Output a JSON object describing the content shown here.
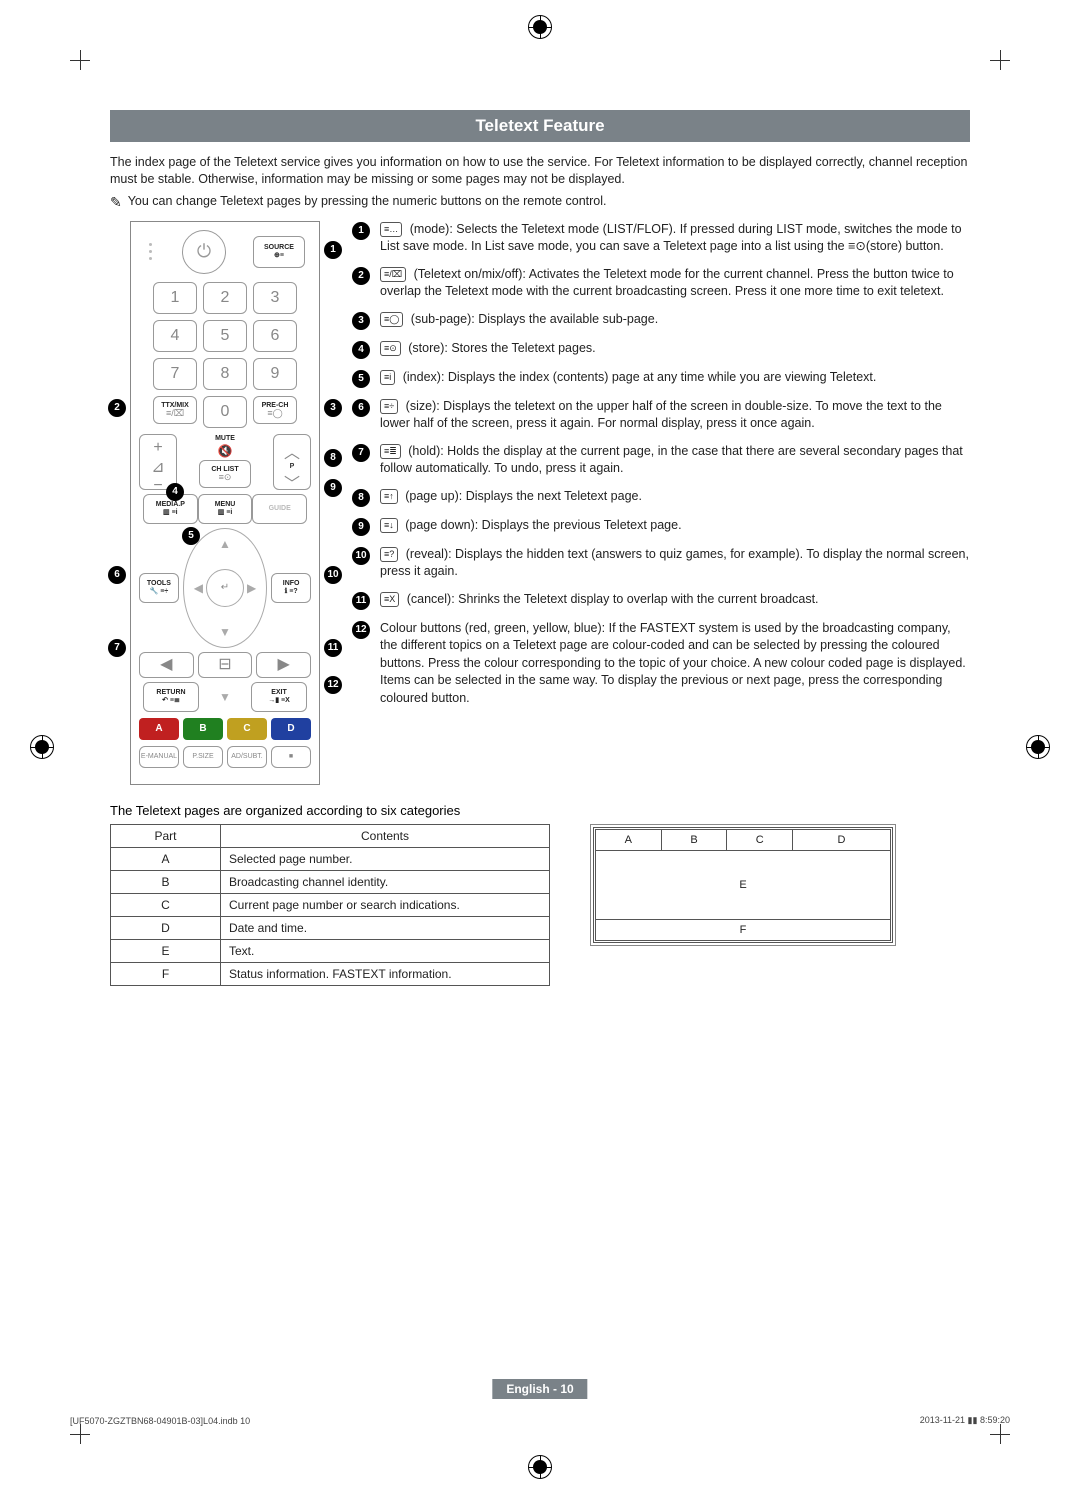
{
  "title": "Teletext Feature",
  "intro": "The index page of the Teletext service gives you information on how to use the service. For Teletext information to be displayed correctly, channel reception must be stable. Otherwise, information may be missing or some pages may not be displayed.",
  "note": "You can change Teletext pages by pressing the numeric buttons on the remote control.",
  "remote": {
    "source": "SOURCE",
    "nums": [
      "1",
      "2",
      "3",
      "4",
      "5",
      "6",
      "7",
      "8",
      "9",
      "0"
    ],
    "ttx": "TTX/MIX",
    "prech": "PRE-CH",
    "mute": "MUTE",
    "chlist": "CH LIST",
    "p": "P",
    "media": "MEDIA.P",
    "menu": "MENU",
    "guide": "GUIDE",
    "tools": "TOOLS",
    "info": "INFO",
    "return": "RETURN",
    "exit": "EXIT",
    "colors": [
      "A",
      "B",
      "C",
      "D"
    ],
    "bottom": [
      "E-MANUAL",
      "P.SIZE",
      "AD/SUBT.",
      "■"
    ]
  },
  "descriptions": [
    {
      "n": "1",
      "icon": "≡…",
      "text": "(mode): Selects the Teletext mode (LIST/FLOF). If pressed during LIST mode, switches the mode to List save mode. In List save mode, you can save a Teletext page into a list using the ≡⊙(store) button."
    },
    {
      "n": "2",
      "icon": "≡/⌧",
      "text": "(Teletext on/mix/off): Activates the Teletext mode for the current channel. Press the button twice to overlap the Teletext mode with the current broadcasting screen. Press it one more time to exit teletext."
    },
    {
      "n": "3",
      "icon": "≡◯",
      "text": "(sub-page): Displays the available sub-page."
    },
    {
      "n": "4",
      "icon": "≡⊙",
      "text": "(store): Stores the Teletext pages."
    },
    {
      "n": "5",
      "icon": "≡i",
      "text": "(index): Displays the index (contents) page at any time while you are viewing Teletext."
    },
    {
      "n": "6",
      "icon": "≡÷",
      "text": "(size): Displays the teletext on the upper half of the screen in double-size. To move the text to the lower half of the screen, press it again. For normal display, press it once again."
    },
    {
      "n": "7",
      "icon": "≡≣",
      "text": "(hold): Holds the display at the current page, in the case that there are several secondary pages that follow automatically. To undo, press it again."
    },
    {
      "n": "8",
      "icon": "≡↑",
      "text": "(page up): Displays the next Teletext page."
    },
    {
      "n": "9",
      "icon": "≡↓",
      "text": "(page down): Displays the previous Teletext page."
    },
    {
      "n": "10",
      "icon": "≡?",
      "text": "(reveal): Displays the hidden text (answers to quiz games, for example). To display the normal screen, press it again."
    },
    {
      "n": "11",
      "icon": "≡X",
      "text": "(cancel): Shrinks the Teletext display to overlap with the current broadcast."
    },
    {
      "n": "12",
      "icon": "",
      "text": "Colour buttons (red, green, yellow, blue): If the FASTEXT system is used by the broadcasting company, the different topics on a Teletext page are colour-coded and can be selected by pressing the coloured buttons. Press the colour corresponding to the topic of your choice. A new colour coded page is displayed. Items can be selected in the same way. To display the previous or next page, press the corresponding coloured button."
    }
  ],
  "categories_header": "The Teletext pages are organized according to six categories",
  "table": {
    "headers": [
      "Part",
      "Contents"
    ],
    "rows": [
      [
        "A",
        "Selected page number."
      ],
      [
        "B",
        "Broadcasting channel identity."
      ],
      [
        "C",
        "Current page number or search indications."
      ],
      [
        "D",
        "Date and time."
      ],
      [
        "E",
        "Text."
      ],
      [
        "F",
        "Status information. FASTEXT information."
      ]
    ]
  },
  "layout": {
    "row1": [
      "A",
      "B",
      "C",
      "D"
    ],
    "mid": "E",
    "bot": "F"
  },
  "footer_center": "English - 10",
  "footer_left": "[UF5070-ZGZTBN68-04901B-03]L04.indb   10",
  "footer_right": "2013-11-21   ▮▮ 8:59:20",
  "colors": {
    "titlebar": "#7a8288",
    "red": "#c02020",
    "green": "#208020",
    "yellow": "#c0a020",
    "blue": "#2040a0"
  }
}
